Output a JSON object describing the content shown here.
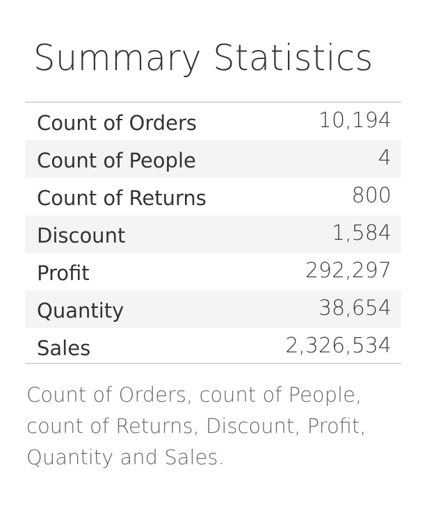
{
  "title": "Summary Statistics",
  "chart_data": {
    "type": "table",
    "title": "Summary Statistics",
    "columns": [
      "",
      ""
    ],
    "rows": [
      {
        "label": "Count of Orders",
        "value": "10,194"
      },
      {
        "label": "Count of People",
        "value": "4"
      },
      {
        "label": "Count of Returns",
        "value": "800"
      },
      {
        "label": "Discount",
        "value": "1,584"
      },
      {
        "label": "Profit",
        "value": "292,297"
      },
      {
        "label": "Quantity",
        "value": "38,654"
      },
      {
        "label": "Sales",
        "value": "2,326,534"
      }
    ]
  },
  "caption": "Count of Orders, count of People, count of Returns, Discount, Profit, Quantity and Sales.",
  "colors": {
    "row_alt_background": "#f4f4f4",
    "border": "#d6d6d6",
    "text": "#333333",
    "caption_text": "#666666"
  }
}
